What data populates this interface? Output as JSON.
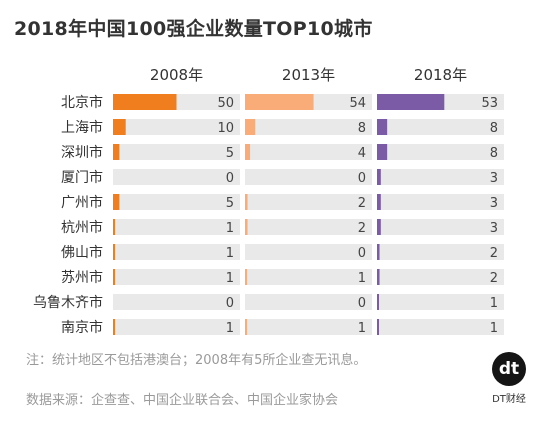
{
  "chart_data": {
    "type": "bar",
    "title": "2018年中国100强企业数量TOP10城市",
    "categories": [
      "北京市",
      "上海市",
      "深圳市",
      "厦门市",
      "广州市",
      "杭州市",
      "佛山市",
      "苏州市",
      "乌鲁木齐市",
      "南京市"
    ],
    "series": [
      {
        "name": "2008年",
        "values": [
          50,
          10,
          5,
          0,
          5,
          1,
          1,
          1,
          0,
          1
        ],
        "color": "#f07d1e"
      },
      {
        "name": "2013年",
        "values": [
          54,
          8,
          4,
          0,
          2,
          2,
          0,
          1,
          0,
          1
        ],
        "color": "#f9ac78"
      },
      {
        "name": "2018年",
        "values": [
          53,
          8,
          8,
          3,
          3,
          3,
          2,
          2,
          1,
          1
        ],
        "color": "#7b5ba6"
      }
    ],
    "xlim": [
      0,
      100
    ],
    "track_color": "#e9e9e9"
  },
  "note": "注：统计地区不包括港澳台；2008年有5所企业查无讯息。",
  "source": "数据来源：企查查、中国企业联合会、中国企业家协会",
  "logo": {
    "mark": "dt",
    "text": "DT财经"
  }
}
